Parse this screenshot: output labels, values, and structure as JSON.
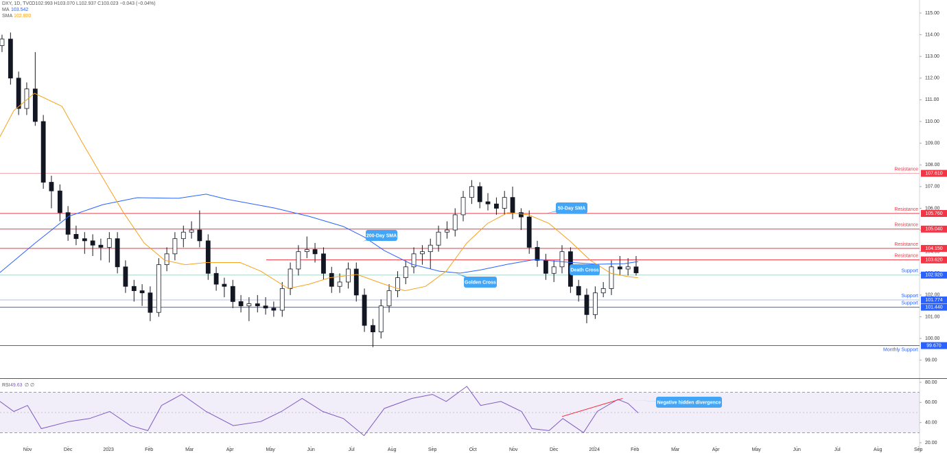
{
  "chart_data": [
    {
      "type": "candlestick",
      "title": "DXY, 1D, TVC",
      "quote": "O102.993 H103.070 L102.937 C103.023 −0.043 (−0.04%)",
      "xlim": [
        0.32,
        23.03
      ],
      "ylim": [
        98.2,
        115.6
      ],
      "yticks": [
        {
          "value": 99,
          "label": "99.00"
        },
        {
          "value": 100,
          "label": "100.00"
        },
        {
          "value": 101,
          "label": "101.00"
        },
        {
          "value": 102,
          "label": "102.00"
        },
        {
          "value": 103,
          "label": "103.00"
        },
        {
          "value": 104,
          "label": "104.00"
        },
        {
          "value": 105,
          "label": "105.00"
        },
        {
          "value": 106,
          "label": "106.00"
        },
        {
          "value": 107,
          "label": "107.00"
        },
        {
          "value": 108,
          "label": "108.00"
        },
        {
          "value": 109,
          "label": "109.00"
        },
        {
          "value": 110,
          "label": "110.00"
        },
        {
          "value": 111,
          "label": "111.00"
        },
        {
          "value": 112,
          "label": "112.00"
        },
        {
          "value": 113,
          "label": "113.00"
        },
        {
          "value": 114,
          "label": "114.00"
        },
        {
          "value": 115,
          "label": "115.00"
        }
      ],
      "up_color": "#ffffff",
      "down_color": "#131722",
      "x": [
        0.37,
        0.58,
        0.78,
        0.98,
        1.19,
        1.39,
        1.59,
        1.8,
        2.0,
        2.2,
        2.41,
        2.61,
        2.81,
        3.02,
        3.22,
        3.42,
        3.63,
        3.83,
        4.03,
        4.24,
        4.44,
        4.64,
        4.85,
        5.05,
        5.25,
        5.46,
        5.66,
        5.86,
        6.07,
        6.27,
        6.47,
        6.68,
        6.88,
        7.08,
        7.29,
        7.49,
        7.69,
        7.9,
        8.1,
        8.31,
        8.51,
        8.71,
        8.92,
        9.12,
        9.32,
        9.53,
        9.73,
        9.93,
        10.14,
        10.34,
        10.54,
        10.75,
        10.95,
        11.15,
        11.36,
        11.56,
        11.76,
        11.97,
        12.17,
        12.37,
        12.58,
        12.78,
        12.98,
        13.19,
        13.39,
        13.59,
        13.8,
        14.0,
        14.2,
        14.41,
        14.61,
        14.81,
        15.02,
        15.22,
        15.42,
        15.63,
        15.83,
        16.03
      ],
      "open": [
        113.5,
        113.8,
        112.0,
        110.6,
        111.5,
        110.0,
        107.2,
        106.8,
        105.8,
        104.8,
        104.6,
        104.5,
        104.3,
        104.2,
        104.6,
        103.3,
        102.4,
        102.2,
        102.1,
        101.2,
        103.4,
        103.9,
        104.6,
        104.9,
        105.0,
        104.5,
        103.0,
        102.5,
        102.4,
        101.7,
        101.5,
        101.6,
        101.5,
        101.4,
        101.3,
        102.3,
        103.2,
        104.0,
        104.1,
        103.9,
        103.0,
        102.4,
        102.6,
        103.2,
        102.0,
        100.6,
        100.3,
        101.5,
        102.2,
        102.8,
        103.3,
        103.9,
        104.0,
        104.3,
        104.9,
        105.0,
        105.7,
        106.5,
        107.0,
        106.3,
        106.2,
        106.0,
        106.5,
        105.8,
        105.6,
        104.2,
        103.6,
        103.0,
        103.3,
        104.0,
        102.4,
        102.0,
        101.1,
        102.1,
        102.3,
        103.3,
        103.2,
        103.3
      ],
      "high": [
        114.0,
        114.1,
        112.3,
        111.8,
        113.2,
        110.3,
        107.5,
        107.1,
        106.1,
        105.2,
        104.9,
        104.8,
        104.6,
        104.9,
        104.9,
        103.6,
        102.7,
        102.5,
        102.4,
        103.7,
        104.2,
        104.9,
        105.2,
        105.4,
        105.9,
        104.8,
        103.3,
        102.8,
        102.7,
        102.0,
        101.9,
        102.0,
        101.9,
        101.7,
        102.6,
        103.5,
        104.3,
        104.7,
        104.4,
        104.2,
        103.3,
        103.0,
        103.5,
        103.5,
        102.3,
        100.9,
        101.8,
        102.5,
        103.1,
        103.6,
        104.2,
        104.3,
        104.6,
        105.2,
        105.4,
        106.0,
        106.8,
        107.3,
        107.2,
        106.7,
        106.5,
        106.8,
        107.0,
        106.0,
        105.9,
        104.5,
        103.9,
        103.6,
        104.3,
        104.2,
        102.7,
        102.3,
        102.4,
        102.6,
        103.6,
        103.8,
        103.7,
        103.8
      ],
      "low": [
        113.2,
        111.7,
        110.3,
        110.3,
        109.8,
        106.9,
        106.0,
        105.4,
        104.5,
        104.3,
        103.9,
        103.8,
        103.6,
        103.5,
        103.0,
        102.1,
        101.7,
        101.5,
        100.8,
        101.0,
        103.1,
        103.6,
        104.2,
        104.6,
        104.2,
        102.7,
        102.2,
        101.9,
        101.4,
        101.2,
        100.8,
        101.2,
        101.1,
        101.0,
        101.0,
        102.0,
        102.9,
        103.7,
        103.5,
        102.7,
        102.1,
        102.1,
        102.3,
        101.7,
        100.3,
        99.6,
        100.0,
        101.2,
        101.9,
        102.5,
        103.0,
        103.4,
        103.2,
        104.0,
        104.6,
        104.7,
        105.4,
        106.2,
        106.0,
        105.9,
        105.7,
        105.7,
        105.5,
        105.0,
        103.9,
        103.3,
        102.7,
        102.6,
        103.0,
        102.1,
        101.7,
        100.7,
        100.9,
        101.9,
        102.0,
        102.9,
        102.9,
        102.9
      ],
      "close": [
        113.8,
        112.0,
        110.6,
        111.5,
        110.0,
        107.2,
        106.8,
        105.8,
        104.8,
        104.6,
        104.5,
        104.3,
        104.2,
        104.6,
        103.3,
        102.4,
        102.2,
        102.1,
        101.2,
        103.4,
        103.9,
        104.6,
        104.9,
        105.0,
        104.5,
        103.0,
        102.5,
        102.4,
        101.7,
        101.5,
        101.6,
        101.5,
        101.4,
        101.3,
        102.3,
        103.2,
        104.0,
        104.1,
        103.9,
        103.0,
        102.4,
        102.6,
        103.2,
        102.0,
        100.6,
        100.3,
        101.5,
        102.2,
        102.8,
        103.3,
        103.9,
        104.0,
        104.3,
        104.9,
        105.0,
        105.7,
        106.5,
        107.0,
        106.3,
        106.2,
        106.0,
        106.5,
        105.8,
        105.6,
        104.2,
        103.6,
        103.0,
        103.3,
        104.0,
        102.4,
        102.0,
        101.1,
        102.1,
        102.3,
        103.3,
        103.2,
        103.3,
        103.023
      ],
      "series": [
        {
          "name": "MA",
          "color": "#2962ff",
          "last_label": "103.542",
          "x": [
            0.32,
            1.17,
            2.02,
            2.86,
            3.71,
            4.73,
            5.41,
            5.92,
            7.1,
            7.95,
            8.8,
            9.31,
            9.81,
            10.49,
            11.17,
            11.68,
            12.19,
            12.86,
            13.54,
            14.39,
            15.07,
            15.75,
            16.08
          ],
          "values": [
            103.04,
            104.37,
            105.63,
            106.17,
            106.49,
            106.46,
            106.65,
            106.42,
            106.01,
            105.63,
            105.16,
            104.68,
            104.05,
            103.42,
            103.1,
            103.01,
            103.16,
            103.42,
            103.64,
            103.51,
            103.42,
            103.45,
            103.542
          ]
        },
        {
          "name": "SMA",
          "color": "#f7a21b",
          "last_label": "102.800",
          "x": [
            0.32,
            0.66,
            1.17,
            1.85,
            2.36,
            2.86,
            3.37,
            3.88,
            4.39,
            4.9,
            5.41,
            6.25,
            6.76,
            7.44,
            7.95,
            8.46,
            9.14,
            9.81,
            10.32,
            10.83,
            11.34,
            11.85,
            12.36,
            12.86,
            13.37,
            13.88,
            14.39,
            14.9,
            15.41,
            15.83,
            16.08
          ],
          "values": [
            109.3,
            110.5,
            111.3,
            110.7,
            109.0,
            107.4,
            105.8,
            104.4,
            103.6,
            103.4,
            103.5,
            103.5,
            103.1,
            102.3,
            102.5,
            102.8,
            102.95,
            102.5,
            102.2,
            102.4,
            103.1,
            104.4,
            105.3,
            105.8,
            105.7,
            105.3,
            104.5,
            103.6,
            103.0,
            102.85,
            102.8
          ]
        }
      ],
      "levels": [
        {
          "value": 107.61,
          "label": "107.610",
          "text": "Resistance",
          "color": "#f7a9b0",
          "badge": "#f23645"
        },
        {
          "value": 105.76,
          "label": "105.760",
          "text": "Resistance",
          "color": "#f23645",
          "badge": "#f23645"
        },
        {
          "value": 105.04,
          "label": "105.040",
          "text": "Resistance",
          "color": "#f23645",
          "badge": "#f23645"
        },
        {
          "value": 104.15,
          "label": "104.150",
          "text": "Resistance",
          "color": "#f23645",
          "badge": "#f23645"
        },
        {
          "value": 103.62,
          "label": "103.620",
          "text": "Resistance",
          "color": "#f23645",
          "badge": "#f23645"
        },
        {
          "value": 102.92,
          "label": "102.920",
          "text": "Support",
          "color": "#a5d6c8",
          "badge": "#2962ff"
        },
        {
          "value": 101.774,
          "label": "101.774",
          "text": "Support",
          "color": "#b2bfe0",
          "badge": "#2962ff"
        },
        {
          "value": 101.44,
          "label": "101.440",
          "text": "Support",
          "color": "#2962ff",
          "badge": "#2962ff"
        },
        {
          "value": 99.67,
          "label": "99.670",
          "text": "Monthly Support",
          "color": "#2962ff",
          "badge": "#2962ff"
        }
      ],
      "annotations": [
        "200-Day SMA",
        "Golden Cross",
        "50-Day SMA",
        "Death Cross"
      ]
    },
    {
      "type": "line",
      "title": "RSI",
      "params": "∅ ∅",
      "last_label": "49.63",
      "xlim": [
        0.32,
        23.03
      ],
      "ylim": [
        16.6,
        83.4
      ],
      "yticks": [
        {
          "value": 20,
          "label": "20.00"
        },
        {
          "value": 40,
          "label": "40.00"
        },
        {
          "value": 60,
          "label": "60.00"
        },
        {
          "value": 80,
          "label": "80.00"
        }
      ],
      "band": [
        30,
        70
      ],
      "midline": 50,
      "xticks": [
        {
          "value": 1,
          "label": "Nov"
        },
        {
          "value": 2,
          "label": "Dec"
        },
        {
          "value": 3,
          "label": "2023"
        },
        {
          "value": 4,
          "label": "Feb"
        },
        {
          "value": 5,
          "label": "Mar"
        },
        {
          "value": 6,
          "label": "Apr"
        },
        {
          "value": 7,
          "label": "May"
        },
        {
          "value": 8,
          "label": "Jun"
        },
        {
          "value": 9,
          "label": "Jul"
        },
        {
          "value": 10,
          "label": "Aug"
        },
        {
          "value": 11,
          "label": "Sep"
        },
        {
          "value": 12,
          "label": "Oct"
        },
        {
          "value": 13,
          "label": "Nov"
        },
        {
          "value": 14,
          "label": "Dec"
        },
        {
          "value": 15,
          "label": "2024"
        },
        {
          "value": 16,
          "label": "Feb"
        },
        {
          "value": 17,
          "label": "Mar"
        },
        {
          "value": 18,
          "label": "Apr"
        },
        {
          "value": 19,
          "label": "May"
        },
        {
          "value": 20,
          "label": "Jun"
        },
        {
          "value": 21,
          "label": "Jul"
        },
        {
          "value": 22,
          "label": "Aug"
        },
        {
          "value": 23,
          "label": "Sep"
        }
      ],
      "series": [
        {
          "name": "RSI",
          "color": "#7e57c2",
          "x": [
            0.32,
            0.66,
            1.0,
            1.34,
            2.02,
            2.53,
            3.03,
            3.54,
            3.97,
            4.31,
            4.81,
            5.41,
            6.08,
            6.76,
            7.27,
            7.78,
            8.29,
            8.8,
            9.31,
            9.81,
            10.49,
            11.0,
            11.34,
            11.85,
            12.19,
            12.69,
            13.2,
            13.46,
            13.88,
            14.22,
            14.73,
            15.07,
            15.58,
            15.83,
            16.08
          ],
          "values": [
            61,
            51,
            57,
            34,
            41,
            44,
            51,
            37,
            32,
            57,
            68,
            51,
            37,
            41,
            51,
            64,
            51,
            44,
            27,
            54,
            64,
            68,
            61,
            76,
            57,
            61,
            51,
            34,
            32,
            44,
            30,
            51,
            63,
            59,
            49.63
          ]
        }
      ],
      "divergence": {
        "color": "#f23645",
        "x": [
          14.2,
          15.7
        ],
        "values": [
          46,
          64
        ]
      },
      "annotations": [
        "Negative hidden divergence"
      ]
    }
  ]
}
